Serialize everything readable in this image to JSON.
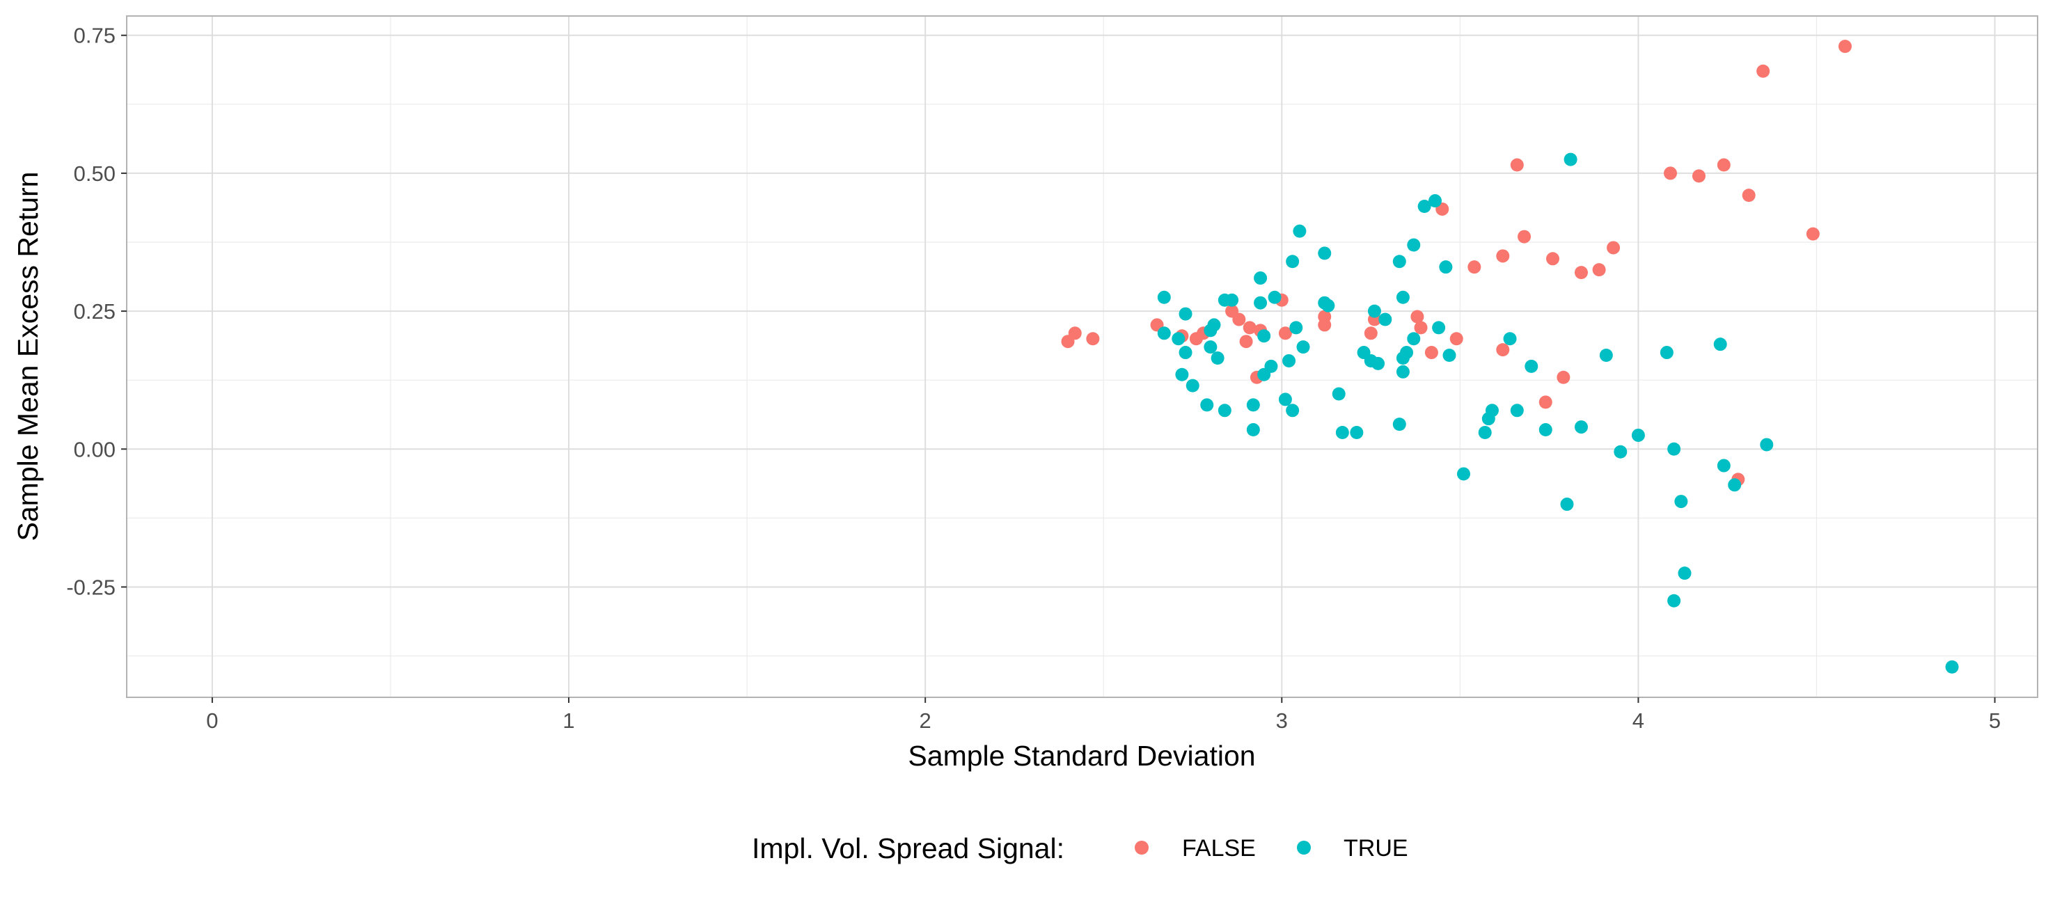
{
  "chart_data": {
    "type": "scatter",
    "xlabel": "Sample Standard Deviation",
    "ylabel": "Sample Mean Excess Return",
    "xlim": [
      -0.24,
      5.12
    ],
    "ylim": [
      -0.45,
      0.785
    ],
    "x_ticks": [
      0,
      1,
      2,
      3,
      4,
      5
    ],
    "x_tick_labels": [
      "0",
      "1",
      "2",
      "3",
      "4",
      "5"
    ],
    "y_ticks": [
      -0.25,
      0.0,
      0.25,
      0.5,
      0.75
    ],
    "y_tick_labels": [
      "-0.25",
      "0.00",
      "0.25",
      "0.50",
      "0.75"
    ],
    "grid": true,
    "legend": {
      "title": "Impl. Vol. Spread Signal:",
      "position": "bottom",
      "entries": [
        "FALSE",
        "TRUE"
      ]
    },
    "colors": {
      "FALSE": "#F8766D",
      "TRUE": "#00BFC4"
    },
    "series": [
      {
        "name": "FALSE",
        "color": "#F8766D",
        "points": [
          [
            2.4,
            0.195
          ],
          [
            2.42,
            0.21
          ],
          [
            2.47,
            0.2
          ],
          [
            2.65,
            0.225
          ],
          [
            2.72,
            0.205
          ],
          [
            2.76,
            0.2
          ],
          [
            2.78,
            0.21
          ],
          [
            2.86,
            0.25
          ],
          [
            2.88,
            0.235
          ],
          [
            2.9,
            0.195
          ],
          [
            2.91,
            0.22
          ],
          [
            2.93,
            0.13
          ],
          [
            2.94,
            0.215
          ],
          [
            3.0,
            0.27
          ],
          [
            3.01,
            0.21
          ],
          [
            3.12,
            0.225
          ],
          [
            3.12,
            0.24
          ],
          [
            3.25,
            0.21
          ],
          [
            3.26,
            0.235
          ],
          [
            3.38,
            0.24
          ],
          [
            3.39,
            0.22
          ],
          [
            3.42,
            0.175
          ],
          [
            3.45,
            0.435
          ],
          [
            3.49,
            0.2
          ],
          [
            3.54,
            0.33
          ],
          [
            3.62,
            0.18
          ],
          [
            3.62,
            0.35
          ],
          [
            3.66,
            0.515
          ],
          [
            3.68,
            0.385
          ],
          [
            3.74,
            0.085
          ],
          [
            3.76,
            0.345
          ],
          [
            3.79,
            0.13
          ],
          [
            3.84,
            0.32
          ],
          [
            3.89,
            0.325
          ],
          [
            3.93,
            0.365
          ],
          [
            4.09,
            0.5
          ],
          [
            4.17,
            0.495
          ],
          [
            4.24,
            0.515
          ],
          [
            4.28,
            -0.055
          ],
          [
            4.31,
            0.46
          ],
          [
            4.35,
            0.685
          ],
          [
            4.49,
            0.39
          ],
          [
            4.58,
            0.73
          ]
        ]
      },
      {
        "name": "TRUE",
        "color": "#00BFC4",
        "points": [
          [
            2.67,
            0.275
          ],
          [
            2.67,
            0.21
          ],
          [
            2.71,
            0.2
          ],
          [
            2.72,
            0.135
          ],
          [
            2.73,
            0.175
          ],
          [
            2.73,
            0.245
          ],
          [
            2.75,
            0.115
          ],
          [
            2.79,
            0.08
          ],
          [
            2.8,
            0.185
          ],
          [
            2.8,
            0.215
          ],
          [
            2.81,
            0.225
          ],
          [
            2.82,
            0.165
          ],
          [
            2.84,
            0.07
          ],
          [
            2.84,
            0.27
          ],
          [
            2.86,
            0.27
          ],
          [
            2.92,
            0.08
          ],
          [
            2.92,
            0.035
          ],
          [
            2.94,
            0.265
          ],
          [
            2.94,
            0.31
          ],
          [
            2.95,
            0.205
          ],
          [
            2.95,
            0.135
          ],
          [
            2.97,
            0.15
          ],
          [
            2.98,
            0.275
          ],
          [
            3.01,
            0.09
          ],
          [
            3.02,
            0.16
          ],
          [
            3.03,
            0.07
          ],
          [
            3.03,
            0.34
          ],
          [
            3.04,
            0.22
          ],
          [
            3.05,
            0.395
          ],
          [
            3.06,
            0.185
          ],
          [
            3.12,
            0.265
          ],
          [
            3.12,
            0.355
          ],
          [
            3.13,
            0.26
          ],
          [
            3.16,
            0.1
          ],
          [
            3.17,
            0.03
          ],
          [
            3.21,
            0.03
          ],
          [
            3.23,
            0.175
          ],
          [
            3.25,
            0.16
          ],
          [
            3.26,
            0.25
          ],
          [
            3.27,
            0.155
          ],
          [
            3.29,
            0.235
          ],
          [
            3.33,
            0.045
          ],
          [
            3.33,
            0.34
          ],
          [
            3.34,
            0.14
          ],
          [
            3.34,
            0.275
          ],
          [
            3.34,
            0.165
          ],
          [
            3.35,
            0.175
          ],
          [
            3.37,
            0.2
          ],
          [
            3.37,
            0.37
          ],
          [
            3.4,
            0.44
          ],
          [
            3.43,
            0.45
          ],
          [
            3.44,
            0.22
          ],
          [
            3.46,
            0.33
          ],
          [
            3.47,
            0.17
          ],
          [
            3.51,
            -0.045
          ],
          [
            3.57,
            0.03
          ],
          [
            3.58,
            0.055
          ],
          [
            3.59,
            0.07
          ],
          [
            3.64,
            0.2
          ],
          [
            3.66,
            0.07
          ],
          [
            3.7,
            0.15
          ],
          [
            3.74,
            0.035
          ],
          [
            3.8,
            -0.1
          ],
          [
            3.81,
            0.525
          ],
          [
            3.84,
            0.04
          ],
          [
            3.91,
            0.17
          ],
          [
            3.95,
            -0.005
          ],
          [
            4.0,
            0.025
          ],
          [
            4.08,
            0.175
          ],
          [
            4.1,
            0.0
          ],
          [
            4.1,
            -0.275
          ],
          [
            4.12,
            -0.095
          ],
          [
            4.13,
            -0.225
          ],
          [
            4.23,
            0.19
          ],
          [
            4.24,
            -0.03
          ],
          [
            4.27,
            -0.065
          ],
          [
            4.36,
            0.008
          ],
          [
            4.88,
            -0.395
          ]
        ]
      }
    ]
  }
}
